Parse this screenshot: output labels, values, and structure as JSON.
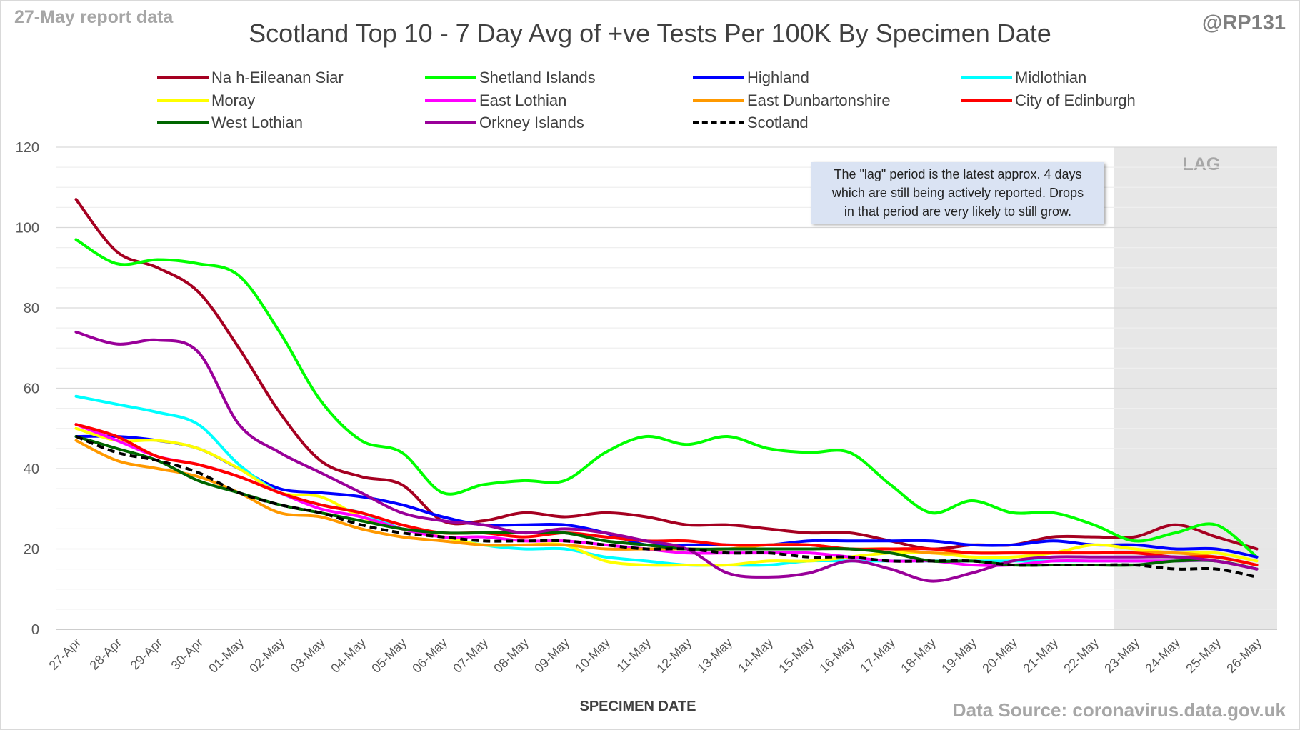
{
  "corner_left": "27-May report data",
  "corner_right": "@RP131",
  "source": "Data Source: coronavirus.data.gov.uk",
  "chart_data": {
    "type": "line",
    "title": "Scotland Top 10 - 7 Day Avg of +ve Tests Per 100K By Specimen Date",
    "xlabel": "SPECIMEN DATE",
    "ylabel": "",
    "ylim": [
      0,
      120
    ],
    "yticks": [
      0,
      20,
      40,
      60,
      80,
      100,
      120
    ],
    "grid": true,
    "legend_position": "top",
    "shaded_region": {
      "label": "LAG",
      "from": "23-May",
      "to": "26-May",
      "color": "#e7e7e7"
    },
    "annotation": "The \"lag\" period is the latest approx. 4 days which are still being actively reported. Drops in that period are very likely to still grow.",
    "annotation_lines": [
      "The \"lag\" period is the latest approx. 4 days",
      "which are still being actively reported.  Drops",
      "in that period are very likely to still grow."
    ],
    "categories": [
      "27-Apr",
      "28-Apr",
      "29-Apr",
      "30-Apr",
      "01-May",
      "02-May",
      "03-May",
      "04-May",
      "05-May",
      "06-May",
      "07-May",
      "08-May",
      "09-May",
      "10-May",
      "11-May",
      "12-May",
      "13-May",
      "14-May",
      "15-May",
      "16-May",
      "17-May",
      "18-May",
      "19-May",
      "20-May",
      "21-May",
      "22-May",
      "23-May",
      "24-May",
      "25-May",
      "26-May"
    ],
    "series": [
      {
        "name": "Na h-Eileanan Siar",
        "color": "#a50021",
        "dash": false,
        "values": [
          107,
          94,
          90,
          84,
          70,
          54,
          42,
          38,
          36,
          27,
          27,
          29,
          28,
          29,
          28,
          26,
          26,
          25,
          24,
          24,
          22,
          20,
          21,
          21,
          23,
          23,
          23,
          26,
          23,
          20
        ]
      },
      {
        "name": "Shetland Islands",
        "color": "#00ff00",
        "dash": false,
        "values": [
          97,
          91,
          92,
          91,
          88,
          74,
          57,
          47,
          44,
          34,
          36,
          37,
          37,
          44,
          48,
          46,
          48,
          45,
          44,
          44,
          36,
          29,
          32,
          29,
          29,
          26,
          22,
          24,
          26,
          18
        ]
      },
      {
        "name": "Highland",
        "color": "#0000ff",
        "dash": false,
        "values": [
          48,
          48,
          47,
          45,
          40,
          35,
          34,
          33,
          31,
          28,
          26,
          26,
          26,
          24,
          21,
          21,
          21,
          21,
          22,
          22,
          22,
          22,
          21,
          21,
          22,
          21,
          21,
          20,
          20,
          18
        ]
      },
      {
        "name": "Midlothian",
        "color": "#00ffff",
        "dash": false,
        "values": [
          58,
          56,
          54,
          51,
          41,
          34,
          31,
          29,
          25,
          23,
          21,
          20,
          20,
          18,
          17,
          16,
          16,
          16,
          17,
          17,
          17,
          17,
          17,
          17,
          17,
          17,
          17,
          17,
          17,
          15
        ]
      },
      {
        "name": "Moray",
        "color": "#ffff00",
        "dash": false,
        "values": [
          50,
          47,
          47,
          45,
          40,
          34,
          33,
          28,
          25,
          23,
          21,
          21,
          21,
          17,
          16,
          16,
          16,
          17,
          17,
          18,
          19,
          19,
          18,
          18,
          19,
          21,
          20,
          19,
          19,
          17
        ]
      },
      {
        "name": "East Lothian",
        "color": "#ff00ff",
        "dash": false,
        "values": [
          51,
          47,
          43,
          41,
          38,
          34,
          30,
          28,
          25,
          23,
          23,
          22,
          22,
          21,
          20,
          19,
          19,
          19,
          19,
          18,
          17,
          17,
          16,
          16,
          17,
          17,
          17,
          17,
          17,
          15
        ]
      },
      {
        "name": "East Dunbartonshire",
        "color": "#ff9900",
        "dash": false,
        "values": [
          47,
          42,
          40,
          38,
          34,
          29,
          28,
          25,
          23,
          22,
          21,
          21,
          21,
          20,
          20,
          20,
          20,
          21,
          21,
          20,
          20,
          19,
          19,
          19,
          19,
          19,
          19,
          19,
          18,
          16
        ]
      },
      {
        "name": "City of Edinburgh",
        "color": "#ff0000",
        "dash": false,
        "values": [
          51,
          48,
          43,
          41,
          38,
          34,
          31,
          29,
          26,
          24,
          24,
          23,
          24,
          23,
          22,
          22,
          21,
          21,
          21,
          20,
          20,
          20,
          19,
          19,
          19,
          19,
          19,
          18,
          18,
          16
        ]
      },
      {
        "name": "West Lothian",
        "color": "#006600",
        "dash": false,
        "values": [
          48,
          45,
          42,
          37,
          34,
          31,
          29,
          27,
          25,
          24,
          24,
          24,
          24,
          22,
          21,
          20,
          20,
          20,
          20,
          20,
          19,
          17,
          17,
          16,
          16,
          16,
          16,
          17,
          17,
          15
        ]
      },
      {
        "name": "Orkney Islands",
        "color": "#990099",
        "dash": false,
        "values": [
          74,
          71,
          72,
          69,
          51,
          44,
          39,
          34,
          29,
          27,
          26,
          24,
          25,
          24,
          22,
          20,
          14,
          13,
          14,
          17,
          15,
          12,
          14,
          17,
          18,
          18,
          18,
          18,
          17,
          15
        ]
      },
      {
        "name": "Scotland",
        "color": "#000000",
        "dash": true,
        "values": [
          48,
          44,
          42,
          39,
          34,
          31,
          29,
          26,
          24,
          23,
          22,
          22,
          22,
          21,
          20,
          20,
          19,
          19,
          18,
          18,
          17,
          17,
          17,
          16,
          16,
          16,
          16,
          15,
          15,
          13
        ]
      }
    ]
  }
}
